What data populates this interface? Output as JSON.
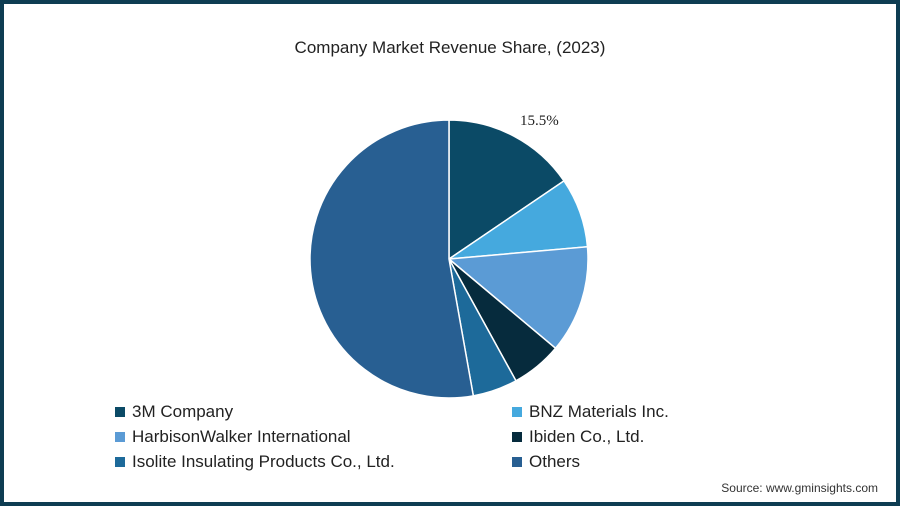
{
  "chart_data": {
    "type": "pie",
    "title": "Company Market Revenue Share, (2023)",
    "categories": [
      "3M Company",
      "BNZ Materials Inc.",
      "HarbisonWalker International",
      "Ibiden Co., Ltd.",
      "Isolite Insulating Products Co., Ltd.",
      "Others"
    ],
    "values": [
      15.5,
      8.1,
      12.5,
      5.9,
      5.2,
      52.8
    ],
    "colors": [
      "#0b4a66",
      "#45a9de",
      "#5b9bd5",
      "#062b3d",
      "#1d6a9a",
      "#285f92"
    ],
    "annotations": [
      {
        "label": "15.5%",
        "category": "3M Company"
      }
    ],
    "legend_position": "bottom",
    "start_angle": 0,
    "direction": "clockwise"
  },
  "title": "Company Market Revenue Share, (2023)",
  "label": "15.5%",
  "legend": [
    {
      "label": "3M Company",
      "color": "#0b4a66"
    },
    {
      "label": "BNZ Materials Inc.",
      "color": "#45a9de"
    },
    {
      "label": "HarbisonWalker International",
      "color": "#5b9bd5"
    },
    {
      "label": "Ibiden Co., Ltd.",
      "color": "#062b3d"
    },
    {
      "label": "Isolite Insulating Products Co., Ltd.",
      "color": "#1d6a9a"
    },
    {
      "label": "Others",
      "color": "#285f92"
    }
  ],
  "source": "Source: www.gminsights.com"
}
